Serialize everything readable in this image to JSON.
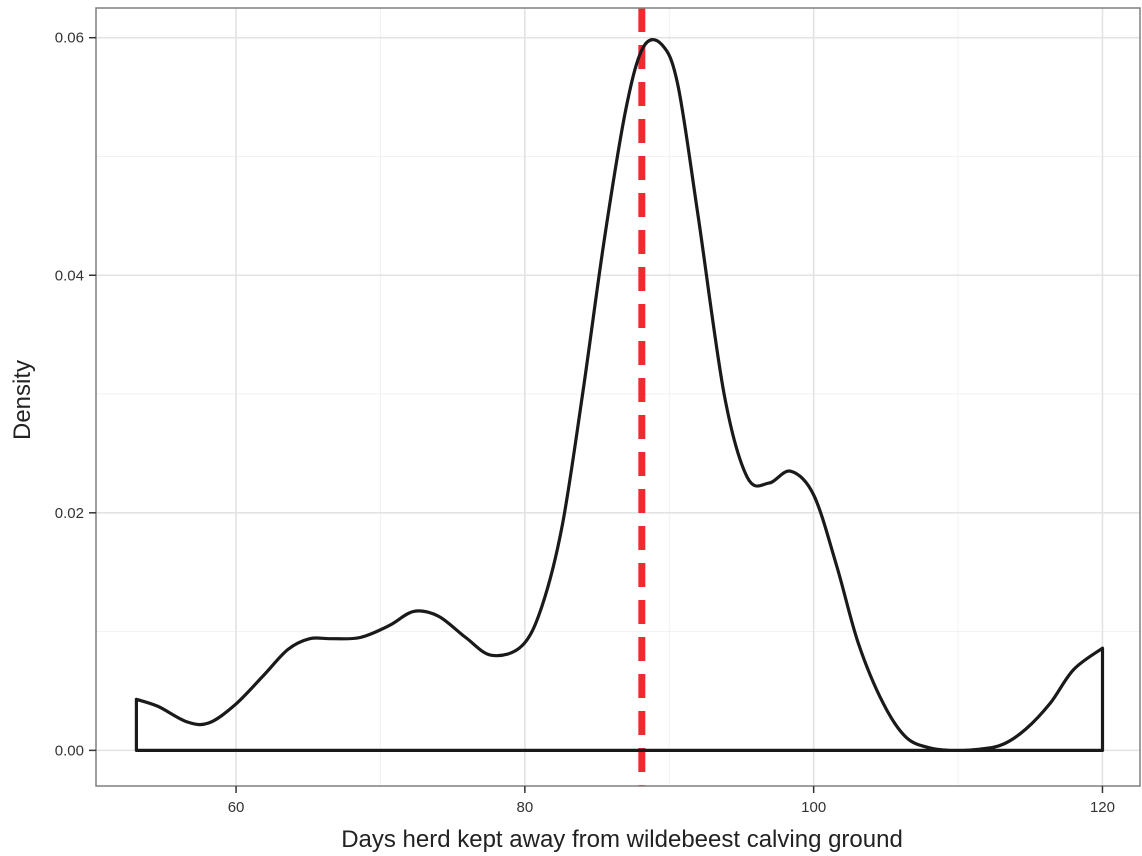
{
  "chart_data": {
    "type": "line",
    "title": "",
    "xlabel": "Days herd kept away from wildebeest calving ground",
    "ylabel": "Density",
    "xlim": [
      50.3,
      122.6
    ],
    "ylim": [
      -0.003,
      0.0625
    ],
    "x_ticks": [
      60,
      80,
      100,
      120
    ],
    "y_ticks": [
      0.0,
      0.02,
      0.04,
      0.06
    ],
    "x_tick_labels": [
      "60",
      "80",
      "100",
      "120"
    ],
    "y_tick_labels": [
      "0.00",
      "0.02",
      "0.04",
      "0.06"
    ],
    "grid": true,
    "legend": "none",
    "series": [
      {
        "x": [
          53.1,
          54.6,
          56.6,
          58.1,
          59.9,
          61.9,
          63.6,
          65.1,
          66.6,
          68.6,
          70.6,
          72.3,
          74.0,
          75.9,
          77.7,
          79.8,
          81.2,
          82.6,
          84.0,
          85.5,
          87.0,
          88.2,
          89.5,
          90.6,
          92.0,
          93.8,
          95.4,
          96.9,
          98.4,
          100.0,
          101.6,
          103.1,
          104.8,
          106.4,
          108.1,
          109.8,
          111.5,
          113.1,
          114.7,
          116.4,
          118.0,
          120.0
        ],
        "y": [
          0.0043,
          0.0037,
          0.0024,
          0.0023,
          0.0038,
          0.0063,
          0.0085,
          0.0094,
          0.0094,
          0.0095,
          0.0105,
          0.0117,
          0.0113,
          0.0095,
          0.008,
          0.0088,
          0.0122,
          0.019,
          0.03,
          0.043,
          0.054,
          0.0592,
          0.0594,
          0.056,
          0.045,
          0.03,
          0.023,
          0.0225,
          0.0235,
          0.0215,
          0.0155,
          0.009,
          0.004,
          0.0011,
          0.0002,
          0.0,
          0.0001,
          0.0005,
          0.0018,
          0.004,
          0.0068,
          0.0086
        ]
      }
    ],
    "reference_line": {
      "x": 88.1,
      "color": "#ee2b2f",
      "style": "dashed"
    },
    "colors": {
      "curve": "#1a1a1a",
      "grid": "#e3e3e3",
      "frame": "#7f7f7f"
    }
  }
}
